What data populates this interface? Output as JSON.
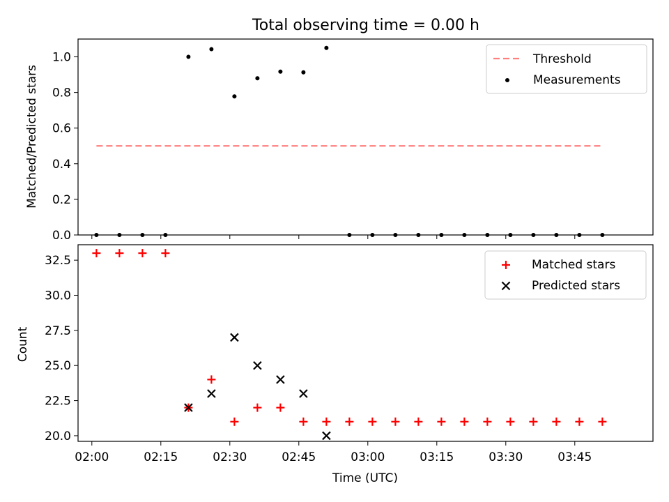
{
  "chart_data": [
    {
      "type": "scatter",
      "title": "Total observing time = 0.00 h",
      "xlabel": "",
      "ylabel": "Matched/Predicted stars",
      "ylim": [
        0,
        1.1
      ],
      "yticks": [
        "0.0",
        "0.2",
        "0.4",
        "0.6",
        "0.8",
        "1.0"
      ],
      "threshold": {
        "name": "Threshold",
        "value": 0.5,
        "x_start": "02:01",
        "x_end": "03:51",
        "color": "#ff7f7f",
        "style": "dashed"
      },
      "series": [
        {
          "name": "Measurements",
          "color": "#000000",
          "marker": "dot",
          "x": [
            "02:01",
            "02:06",
            "02:11",
            "02:16",
            "02:21",
            "02:26",
            "02:31",
            "02:36",
            "02:41",
            "02:46",
            "02:51",
            "02:56",
            "03:01",
            "03:06",
            "03:11",
            "03:16",
            "03:21",
            "03:26",
            "03:31",
            "03:36",
            "03:41",
            "03:46",
            "03:51"
          ],
          "y": [
            0,
            0,
            0,
            0,
            1.0,
            1.043,
            0.778,
            0.88,
            0.917,
            0.913,
            1.05,
            0,
            0,
            0,
            0,
            0,
            0,
            0,
            0,
            0,
            0,
            0,
            0
          ]
        }
      ],
      "legend": [
        "Threshold",
        "Measurements"
      ],
      "legend_position": "top-right"
    },
    {
      "type": "scatter",
      "xlabel": "Time (UTC)",
      "ylabel": "Count",
      "ylim": [
        19.6,
        33.6
      ],
      "xlim": [
        "01:57",
        "04:02"
      ],
      "xticks": [
        "02:00",
        "02:15",
        "02:30",
        "02:45",
        "03:00",
        "03:15",
        "03:30",
        "03:45"
      ],
      "yticks": [
        "20.0",
        "22.5",
        "25.0",
        "27.5",
        "30.0",
        "32.5"
      ],
      "series": [
        {
          "name": "Matched stars",
          "color": "#ff0000",
          "marker": "plus",
          "x": [
            "02:01",
            "02:06",
            "02:11",
            "02:16",
            "02:21",
            "02:26",
            "02:31",
            "02:36",
            "02:41",
            "02:46",
            "02:51",
            "02:56",
            "03:01",
            "03:06",
            "03:11",
            "03:16",
            "03:21",
            "03:26",
            "03:31",
            "03:36",
            "03:41",
            "03:46",
            "03:51"
          ],
          "y": [
            33,
            33,
            33,
            33,
            22,
            24,
            21,
            22,
            22,
            21,
            21,
            21,
            21,
            21,
            21,
            21,
            21,
            21,
            21,
            21,
            21,
            21,
            21
          ]
        },
        {
          "name": "Predicted stars",
          "color": "#000000",
          "marker": "x",
          "x": [
            "02:21",
            "02:26",
            "02:31",
            "02:36",
            "02:41",
            "02:46",
            "02:51"
          ],
          "y": [
            22,
            23,
            27,
            25,
            24,
            23,
            20
          ]
        }
      ],
      "legend": [
        "Matched stars",
        "Predicted stars"
      ],
      "legend_position": "top-right"
    }
  ]
}
